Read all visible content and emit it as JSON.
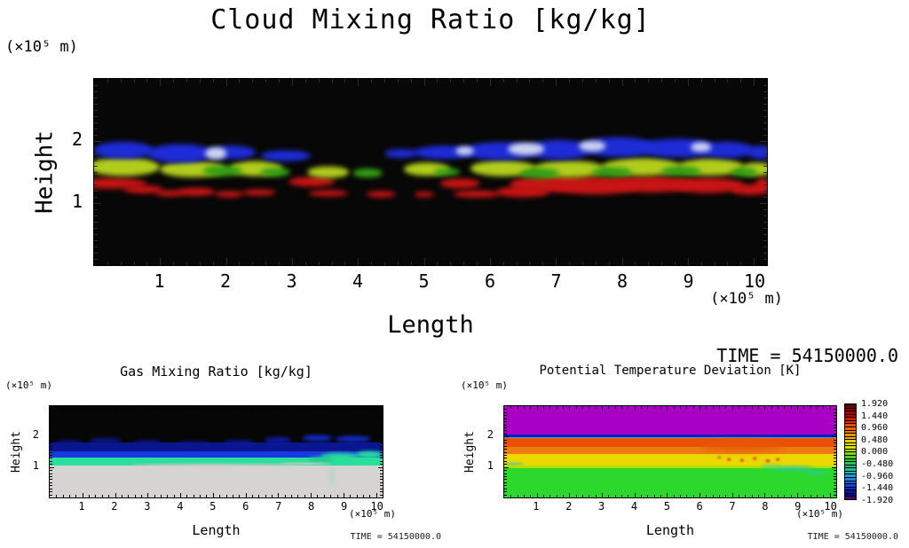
{
  "colors": {
    "background": "#ffffff",
    "text": "#000000",
    "cloud": {
      "b": "#1e2cd8",
      "w": "#ccd2ee",
      "y": "#b2cc1c",
      "g": "#34a014",
      "r": "#c81414"
    }
  },
  "chart_data": [
    {
      "type": "heatmap",
      "title": "Cloud Mixing Ratio [kg/kg]",
      "xlabel": "Length",
      "ylabel": "Height",
      "x_unit": "(×10⁵ m)",
      "y_unit": "(×10⁵ m)",
      "x_range": [
        0,
        10.2
      ],
      "y_range": [
        0,
        3
      ],
      "x_ticks": [
        1,
        2,
        3,
        4,
        5,
        6,
        7,
        8,
        9,
        10
      ],
      "y_ticks": [
        1,
        2
      ],
      "background": "#070707",
      "description": "Black background; blue cloud deck near 1.8-1.9e5 m, yellow-green layer near 1.5e5 m, scattered red layer near 1.1-1.3e5 m, white patches in right half",
      "clouds": [
        {
          "x": 0.25,
          "y": 1.32,
          "rx": 0.55,
          "ry": 0.09,
          "k": "r"
        },
        {
          "x": 0.75,
          "y": 1.22,
          "rx": 0.3,
          "ry": 0.07,
          "k": "r"
        },
        {
          "x": 1.15,
          "y": 1.16,
          "rx": 0.22,
          "ry": 0.05,
          "k": "r"
        },
        {
          "x": 1.55,
          "y": 1.18,
          "rx": 0.28,
          "ry": 0.06,
          "k": "r"
        },
        {
          "x": 2.05,
          "y": 1.15,
          "rx": 0.22,
          "ry": 0.05,
          "k": "r"
        },
        {
          "x": 2.5,
          "y": 1.17,
          "rx": 0.25,
          "ry": 0.05,
          "k": "r"
        },
        {
          "x": 3.3,
          "y": 1.35,
          "rx": 0.35,
          "ry": 0.08,
          "k": "r"
        },
        {
          "x": 3.55,
          "y": 1.16,
          "rx": 0.3,
          "ry": 0.05,
          "k": "r"
        },
        {
          "x": 4.35,
          "y": 1.15,
          "rx": 0.22,
          "ry": 0.05,
          "k": "r"
        },
        {
          "x": 5.0,
          "y": 1.14,
          "rx": 0.15,
          "ry": 0.04,
          "k": "r"
        },
        {
          "x": 5.55,
          "y": 1.32,
          "rx": 0.3,
          "ry": 0.08,
          "k": "r"
        },
        {
          "x": 5.8,
          "y": 1.15,
          "rx": 0.35,
          "ry": 0.06,
          "k": "r"
        },
        {
          "x": 6.5,
          "y": 1.18,
          "rx": 0.4,
          "ry": 0.08,
          "k": "r"
        },
        {
          "x": 6.85,
          "y": 1.3,
          "rx": 0.55,
          "ry": 0.13,
          "k": "r"
        },
        {
          "x": 7.6,
          "y": 1.28,
          "rx": 0.65,
          "ry": 0.14,
          "k": "r"
        },
        {
          "x": 8.45,
          "y": 1.3,
          "rx": 0.65,
          "ry": 0.13,
          "k": "r"
        },
        {
          "x": 9.3,
          "y": 1.28,
          "rx": 0.55,
          "ry": 0.12,
          "k": "r"
        },
        {
          "x": 9.95,
          "y": 1.22,
          "rx": 0.3,
          "ry": 0.09,
          "k": "r"
        },
        {
          "x": 10.15,
          "y": 1.3,
          "rx": 0.12,
          "ry": 0.1,
          "k": "r"
        },
        {
          "x": 0.45,
          "y": 1.58,
          "rx": 0.55,
          "ry": 0.15,
          "k": "y"
        },
        {
          "x": 1.5,
          "y": 1.55,
          "rx": 0.5,
          "ry": 0.13,
          "k": "y"
        },
        {
          "x": 2.45,
          "y": 1.56,
          "rx": 0.4,
          "ry": 0.12,
          "k": "y"
        },
        {
          "x": 3.55,
          "y": 1.5,
          "rx": 0.32,
          "ry": 0.09,
          "k": "y"
        },
        {
          "x": 5.05,
          "y": 1.55,
          "rx": 0.35,
          "ry": 0.11,
          "k": "y"
        },
        {
          "x": 6.2,
          "y": 1.56,
          "rx": 0.5,
          "ry": 0.13,
          "k": "y"
        },
        {
          "x": 7.2,
          "y": 1.55,
          "rx": 0.55,
          "ry": 0.14,
          "k": "y"
        },
        {
          "x": 8.3,
          "y": 1.58,
          "rx": 0.6,
          "ry": 0.14,
          "k": "y"
        },
        {
          "x": 9.35,
          "y": 1.58,
          "rx": 0.5,
          "ry": 0.13,
          "k": "y"
        },
        {
          "x": 10.05,
          "y": 1.55,
          "rx": 0.25,
          "ry": 0.11,
          "k": "y"
        },
        {
          "x": 1.95,
          "y": 1.52,
          "rx": 0.3,
          "ry": 0.09,
          "k": "g"
        },
        {
          "x": 2.75,
          "y": 1.5,
          "rx": 0.22,
          "ry": 0.07,
          "k": "g"
        },
        {
          "x": 4.15,
          "y": 1.48,
          "rx": 0.22,
          "ry": 0.07,
          "k": "g"
        },
        {
          "x": 5.35,
          "y": 1.5,
          "rx": 0.2,
          "ry": 0.06,
          "k": "g"
        },
        {
          "x": 6.75,
          "y": 1.48,
          "rx": 0.3,
          "ry": 0.08,
          "k": "g"
        },
        {
          "x": 7.85,
          "y": 1.5,
          "rx": 0.3,
          "ry": 0.08,
          "k": "g"
        },
        {
          "x": 8.9,
          "y": 1.52,
          "rx": 0.3,
          "ry": 0.08,
          "k": "g"
        },
        {
          "x": 9.85,
          "y": 1.5,
          "rx": 0.2,
          "ry": 0.07,
          "k": "g"
        },
        {
          "x": 0.45,
          "y": 1.85,
          "rx": 0.45,
          "ry": 0.13,
          "k": "b"
        },
        {
          "x": 1.3,
          "y": 1.8,
          "rx": 0.5,
          "ry": 0.15,
          "k": "b"
        },
        {
          "x": 2.1,
          "y": 1.82,
          "rx": 0.35,
          "ry": 0.11,
          "k": "b"
        },
        {
          "x": 2.9,
          "y": 1.76,
          "rx": 0.38,
          "ry": 0.09,
          "k": "b"
        },
        {
          "x": 4.65,
          "y": 1.8,
          "rx": 0.25,
          "ry": 0.07,
          "k": "b"
        },
        {
          "x": 5.3,
          "y": 1.82,
          "rx": 0.45,
          "ry": 0.11,
          "k": "b"
        },
        {
          "x": 6.15,
          "y": 1.84,
          "rx": 0.55,
          "ry": 0.14,
          "k": "b"
        },
        {
          "x": 7.05,
          "y": 1.86,
          "rx": 0.5,
          "ry": 0.16,
          "k": "b"
        },
        {
          "x": 7.95,
          "y": 1.9,
          "rx": 0.55,
          "ry": 0.16,
          "k": "b"
        },
        {
          "x": 8.85,
          "y": 1.88,
          "rx": 0.6,
          "ry": 0.15,
          "k": "b"
        },
        {
          "x": 9.6,
          "y": 1.86,
          "rx": 0.4,
          "ry": 0.13,
          "k": "b"
        },
        {
          "x": 10.1,
          "y": 1.82,
          "rx": 0.2,
          "ry": 0.11,
          "k": "b"
        },
        {
          "x": 1.85,
          "y": 1.8,
          "rx": 0.16,
          "ry": 0.1,
          "k": "w"
        },
        {
          "x": 5.62,
          "y": 1.84,
          "rx": 0.14,
          "ry": 0.07,
          "k": "w"
        },
        {
          "x": 6.55,
          "y": 1.87,
          "rx": 0.28,
          "ry": 0.1,
          "k": "w"
        },
        {
          "x": 7.55,
          "y": 1.92,
          "rx": 0.2,
          "ry": 0.09,
          "k": "w"
        },
        {
          "x": 9.2,
          "y": 1.9,
          "rx": 0.16,
          "ry": 0.08,
          "k": "w"
        }
      ]
    },
    {
      "type": "heatmap",
      "title": "Gas Mixing Ratio [kg/kg]",
      "xlabel": "Length",
      "ylabel": "Height",
      "x_unit": "(×10⁵ m)",
      "y_unit": "(×10⁵ m)",
      "x_range": [
        0,
        10.2
      ],
      "y_range": [
        0,
        3
      ],
      "x_ticks": [
        1,
        2,
        3,
        4,
        5,
        6,
        7,
        8,
        9,
        10
      ],
      "y_ticks": [
        1,
        2
      ],
      "background": "#060606",
      "time_label": "TIME = 54150000.0",
      "description": "Black above ~1.8e5 m, turbulent dark-blue layer 1.3-1.8e5 m, cyan band ~1.05-1.35e5 m, light gray below",
      "bands": [
        {
          "c": "#060606",
          "from": 3.0,
          "to": 1.8
        },
        {
          "c": "#0a1690",
          "from": 1.8,
          "to": 1.45
        },
        {
          "c": "#1838e0",
          "from": 1.52,
          "to": 1.3
        },
        {
          "c": "#28e09a",
          "from": 1.32,
          "to": 1.05
        },
        {
          "c": "#d6d3d3",
          "from": 1.05,
          "to": 0.0
        }
      ],
      "wisps": [
        {
          "x": 0.6,
          "y": 1.82,
          "rx": 0.4,
          "ry": 0.07,
          "c": "#0a1690",
          "b": 2
        },
        {
          "x": 1.7,
          "y": 1.85,
          "rx": 0.5,
          "ry": 0.08,
          "c": "#0a1690",
          "b": 2
        },
        {
          "x": 3.0,
          "y": 1.8,
          "rx": 0.45,
          "ry": 0.07,
          "c": "#0a1690",
          "b": 2
        },
        {
          "x": 4.4,
          "y": 1.78,
          "rx": 0.5,
          "ry": 0.06,
          "c": "#0a1690",
          "b": 2
        },
        {
          "x": 5.8,
          "y": 1.82,
          "rx": 0.45,
          "ry": 0.07,
          "c": "#0c1ba8",
          "b": 2
        },
        {
          "x": 7.0,
          "y": 1.88,
          "rx": 0.4,
          "ry": 0.09,
          "c": "#0c1ba8",
          "b": 2
        },
        {
          "x": 8.2,
          "y": 1.95,
          "rx": 0.45,
          "ry": 0.1,
          "c": "#1028c8",
          "b": 2
        },
        {
          "x": 9.3,
          "y": 1.92,
          "rx": 0.55,
          "ry": 0.1,
          "c": "#1028c8",
          "b": 2
        },
        {
          "x": 8.9,
          "y": 1.35,
          "rx": 0.6,
          "ry": 0.12,
          "c": "#28e09a",
          "b": 2
        },
        {
          "x": 9.8,
          "y": 1.4,
          "rx": 0.4,
          "ry": 0.12,
          "c": "#28e09a",
          "b": 2
        },
        {
          "x": 8.3,
          "y": 1.25,
          "rx": 0.35,
          "ry": 0.08,
          "c": "#20c890",
          "b": 2
        },
        {
          "x": 8.65,
          "y": 0.7,
          "rx": 0.07,
          "ry": 0.3,
          "c": "#b8d4c8",
          "b": 2
        },
        {
          "x": 5.0,
          "y": 1.07,
          "rx": 2.5,
          "ry": 0.025,
          "c": "#e8c4c4",
          "b": 1
        },
        {
          "x": 7.8,
          "y": 1.1,
          "rx": 0.8,
          "ry": 0.03,
          "c": "#ecc8c8",
          "b": 1
        }
      ]
    },
    {
      "type": "heatmap",
      "title": "Potential Temperature Deviation [K]",
      "xlabel": "Length",
      "ylabel": "Height",
      "x_unit": "(×10⁵ m)",
      "y_unit": "(×10⁵ m)",
      "x_range": [
        0,
        10.2
      ],
      "y_range": [
        0,
        3
      ],
      "x_ticks": [
        1,
        2,
        3,
        4,
        5,
        6,
        7,
        8,
        9,
        10
      ],
      "y_ticks": [
        1,
        2
      ],
      "background": "#2cd82c",
      "time_label": "TIME = 54150000.0",
      "time_label_top": "TIME = 54150000.0",
      "description": "Magenta (below -1.92 K) above ~2.1e5 m, thin dark-blue/cyan lines at ~2.0e5 m, orange ~1.6-1.95e5 m, yellow ~1.1-1.4e5 m, green near 0 K below ~1e5 m with red speckles and teal wisps",
      "bands": [
        {
          "c": "#a800c4",
          "from": 3.0,
          "to": 2.08
        },
        {
          "c": "#1818c0",
          "from": 2.08,
          "to": 1.99
        },
        {
          "c": "#28a8e0",
          "from": 1.99,
          "to": 1.95
        },
        {
          "c": "#e85008",
          "from": 1.95,
          "to": 1.58
        },
        {
          "c": "#ee7c10",
          "from": 1.66,
          "to": 1.42
        },
        {
          "c": "#ecd800",
          "from": 1.42,
          "to": 1.06
        },
        {
          "c": "#b0e000",
          "from": 1.06,
          "to": 0.96
        },
        {
          "c": "#2cd82c",
          "from": 0.96,
          "to": 0.0
        }
      ],
      "spots": [
        {
          "x": 7.3,
          "y": 1.7,
          "rx": 1.3,
          "ry": 0.15,
          "c": "#e85808",
          "b": 4
        },
        {
          "x": 6.6,
          "y": 1.3,
          "rx": 0.05,
          "ry": 0.03,
          "c": "#e03808",
          "b": 1
        },
        {
          "x": 6.9,
          "y": 1.25,
          "rx": 0.05,
          "ry": 0.04,
          "c": "#e03808",
          "b": 1
        },
        {
          "x": 7.3,
          "y": 1.22,
          "rx": 0.06,
          "ry": 0.04,
          "c": "#e03808",
          "b": 1
        },
        {
          "x": 7.7,
          "y": 1.28,
          "rx": 0.05,
          "ry": 0.04,
          "c": "#e03808",
          "b": 1
        },
        {
          "x": 8.1,
          "y": 1.2,
          "rx": 0.07,
          "ry": 0.05,
          "c": "#e03808",
          "b": 1
        },
        {
          "x": 8.4,
          "y": 1.25,
          "rx": 0.05,
          "ry": 0.04,
          "c": "#e03808",
          "b": 1
        },
        {
          "x": 8.2,
          "y": 1.02,
          "rx": 0.3,
          "ry": 0.04,
          "c": "#38d0a8",
          "b": 2
        },
        {
          "x": 8.9,
          "y": 0.95,
          "rx": 0.55,
          "ry": 0.05,
          "c": "#30c8b0",
          "b": 2
        },
        {
          "x": 9.6,
          "y": 0.82,
          "rx": 0.3,
          "ry": 0.05,
          "c": "#30c8b0",
          "b": 2
        },
        {
          "x": 0.3,
          "y": 1.12,
          "rx": 0.3,
          "ry": 0.03,
          "c": "#30c8b0",
          "b": 1
        }
      ],
      "colorbar": {
        "tick_labels": [
          "1.920",
          "1.440",
          "0.960",
          "0.480",
          "0.000",
          "-0.480",
          "-0.960",
          "-1.440",
          "-1.920"
        ],
        "colors": [
          "#700000",
          "#8c0000",
          "#a40000",
          "#bc0400",
          "#d41400",
          "#e43000",
          "#ec4c00",
          "#f06400",
          "#ec7c00",
          "#e89400",
          "#e8b000",
          "#e8cc00",
          "#e8e400",
          "#cce400",
          "#a8dc04",
          "#7cd414",
          "#50cc24",
          "#30c438",
          "#24c454",
          "#20c474",
          "#20bc94",
          "#20b4b4",
          "#209cd0",
          "#2080dc",
          "#1c60dc",
          "#1444d4",
          "#0c28bc",
          "#0614a0",
          "#040c88",
          "#400c70"
        ]
      }
    }
  ]
}
